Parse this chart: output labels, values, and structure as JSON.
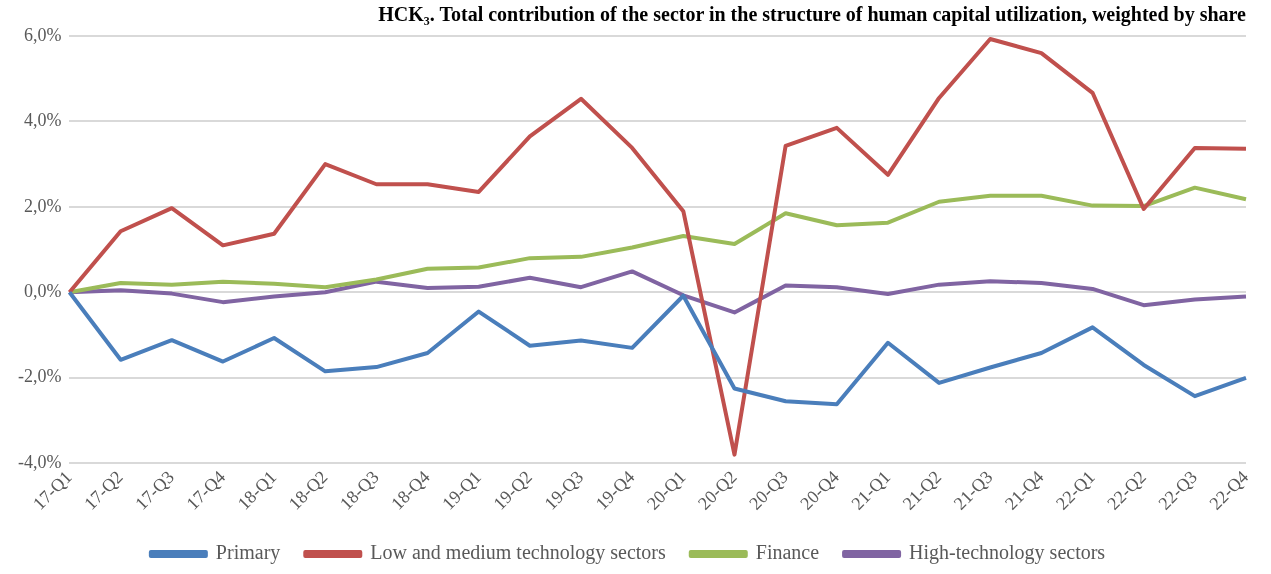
{
  "chart_data": {
    "type": "line",
    "title": "HCK₃. Total contribution of the sector in the structure of human capital utilization, weighted by share",
    "categories": [
      "17-Q1",
      "17-Q2",
      "17-Q3",
      "17-Q4",
      "18-Q1",
      "18-Q2",
      "18-Q3",
      "18-Q4",
      "19-Q1",
      "19-Q2",
      "19-Q3",
      "19-Q4",
      "20-Q1",
      "20-Q2",
      "20-Q3",
      "20-Q4",
      "21-Q1",
      "21-Q2",
      "21-Q3",
      "21-Q4",
      "22-Q1",
      "22-Q2",
      "22-Q3",
      "22-Q4"
    ],
    "series": [
      {
        "name": "Primary",
        "color": "#4a7ebb",
        "values": [
          0,
          -1.58,
          -1.12,
          -1.62,
          -1.07,
          -1.85,
          -1.75,
          -1.42,
          -0.45,
          -1.25,
          -1.13,
          -1.3,
          -0.08,
          -2.25,
          -2.55,
          -2.62,
          -1.18,
          -2.12,
          -1.76,
          -1.42,
          -0.82,
          -1.7,
          -2.43,
          -2.0
        ]
      },
      {
        "name": "Low and medium technology sectors",
        "color": "#c0504d",
        "values": [
          0,
          1.43,
          1.97,
          1.1,
          1.37,
          3.0,
          2.53,
          2.53,
          2.35,
          3.65,
          4.53,
          3.38,
          1.9,
          -3.8,
          3.43,
          3.85,
          2.75,
          4.55,
          5.93,
          5.6,
          4.67,
          1.95,
          3.38,
          3.36
        ]
      },
      {
        "name": "Finance",
        "color": "#9bbb59",
        "values": [
          0,
          0.22,
          0.18,
          0.25,
          0.2,
          0.12,
          0.3,
          0.55,
          0.58,
          0.8,
          0.83,
          1.05,
          1.32,
          1.13,
          1.85,
          1.57,
          1.63,
          2.12,
          2.26,
          2.26,
          2.03,
          2.02,
          2.45,
          2.18
        ]
      },
      {
        "name": "High-technology sectors",
        "color": "#8064a2",
        "values": [
          0,
          0.05,
          -0.03,
          -0.23,
          -0.1,
          0,
          0.25,
          0.1,
          0.13,
          0.34,
          0.12,
          0.49,
          -0.07,
          -0.47,
          0.16,
          0.12,
          -0.04,
          0.18,
          0.26,
          0.22,
          0.08,
          -0.3,
          -0.17,
          -0.1
        ]
      }
    ],
    "ylim": [
      -4,
      6
    ],
    "yticks": [
      {
        "value": -4,
        "label": "-4,0%"
      },
      {
        "value": -2,
        "label": "-2,0%"
      },
      {
        "value": 0,
        "label": "0,0%"
      },
      {
        "value": 2,
        "label": "2,0%"
      },
      {
        "value": 4,
        "label": "4,0%"
      },
      {
        "value": 6,
        "label": "6,0%"
      }
    ],
    "grid": "y",
    "legend": "bottom",
    "marker": "none",
    "line_style": "solid"
  }
}
